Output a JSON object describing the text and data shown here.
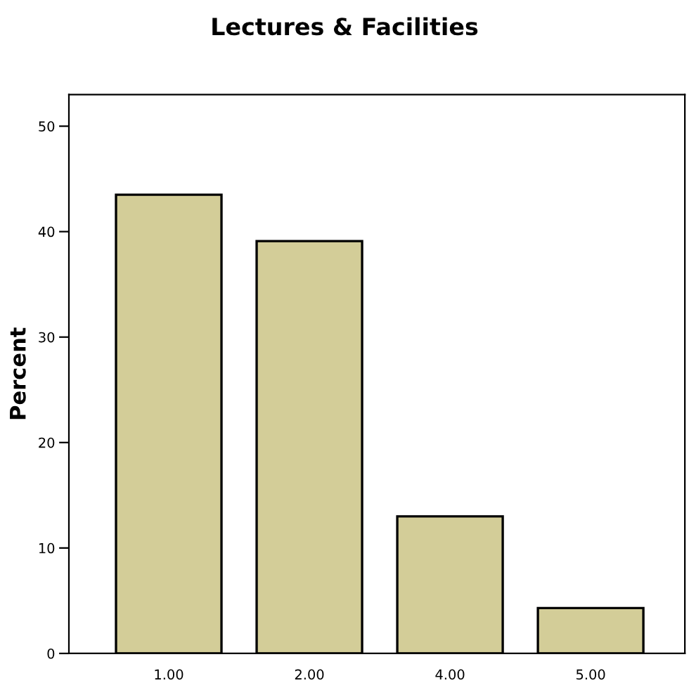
{
  "chart_data": {
    "type": "bar",
    "title": "Lectures & Facilities",
    "ylabel": "Percent",
    "categories": [
      "1.00",
      "2.00",
      "4.00",
      "5.00"
    ],
    "values": [
      43.5,
      39.1,
      13.0,
      4.3
    ],
    "color": "#d3cd98",
    "ylim": [
      0,
      53
    ],
    "yticks": [
      0,
      10,
      20,
      30,
      40,
      50
    ],
    "grid": false
  }
}
